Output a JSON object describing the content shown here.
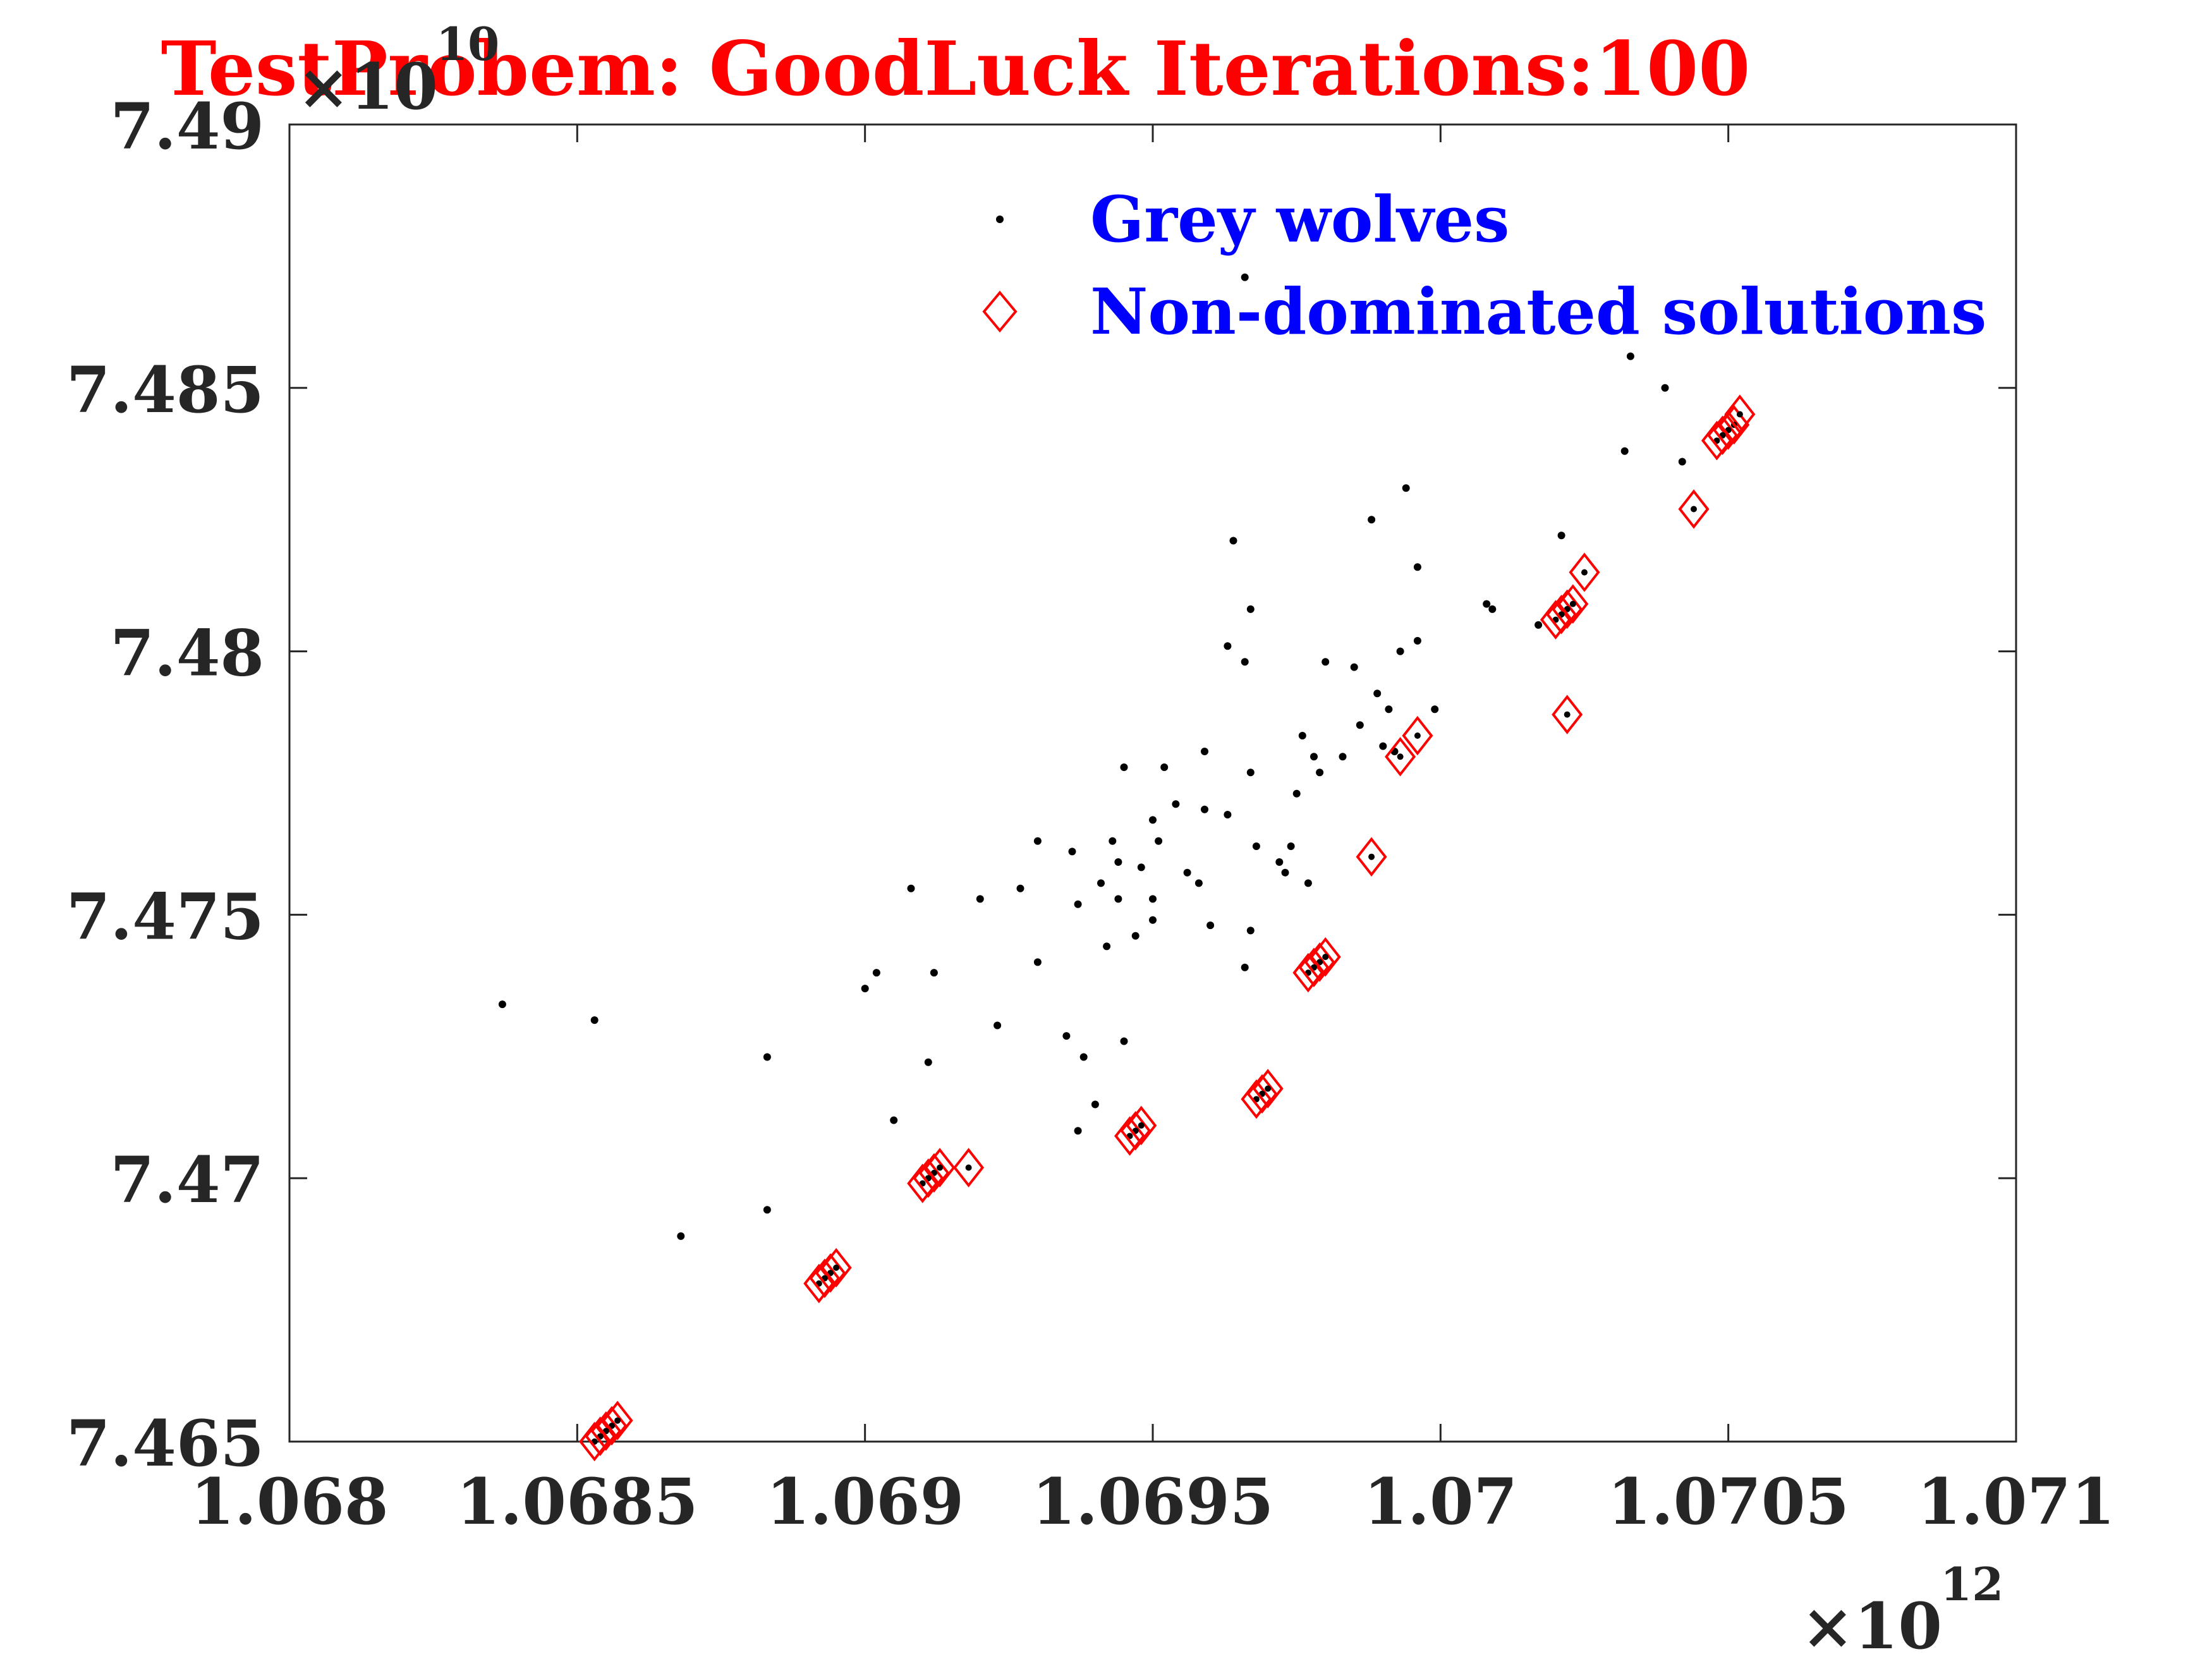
{
  "chart_data": {
    "type": "scatter",
    "title": "TestProbem: GoodLuck   Iterations:100",
    "xlabel": "",
    "ylabel": "",
    "x_multiplier": "×10",
    "x_multiplier_exp": "12",
    "y_multiplier": "×10",
    "y_multiplier_exp": "10",
    "xlim": [
      1.068,
      1.071
    ],
    "ylim": [
      7.465,
      7.49
    ],
    "x_ticks": [
      "1.068",
      "1.0685",
      "1.069",
      "1.0695",
      "1.07",
      "1.0705",
      "1.071"
    ],
    "y_ticks": [
      "7.465",
      "7.47",
      "7.475",
      "7.48",
      "7.485",
      "7.49"
    ],
    "legend_position": "top-right",
    "grid": false,
    "colors": {
      "wolves": "#000000",
      "nondominated": "#ff0000",
      "title": "#ff0000",
      "legend_text": "#0000ff",
      "axis": "#262626"
    },
    "series": [
      {
        "name": "Grey wolves",
        "marker": "dot",
        "points": [
          [
            1.06837,
            7.4733
          ],
          [
            1.06853,
            7.473
          ],
          [
            1.06868,
            7.4689
          ],
          [
            1.06883,
            7.4723
          ],
          [
            1.06883,
            7.4694
          ],
          [
            1.069,
            7.4736
          ],
          [
            1.06902,
            7.4739
          ],
          [
            1.06905,
            7.4711
          ],
          [
            1.06908,
            7.4755
          ],
          [
            1.06911,
            7.4722
          ],
          [
            1.06912,
            7.4739
          ],
          [
            1.0692,
            7.4753
          ],
          [
            1.06923,
            7.4729
          ],
          [
            1.06927,
            7.4755
          ],
          [
            1.0693,
            7.4764
          ],
          [
            1.0693,
            7.4741
          ],
          [
            1.06935,
            7.4727
          ],
          [
            1.06936,
            7.4762
          ],
          [
            1.06937,
            7.4752
          ],
          [
            1.06937,
            7.4709
          ],
          [
            1.06938,
            7.4723
          ],
          [
            1.0694,
            7.4714
          ],
          [
            1.06941,
            7.4756
          ],
          [
            1.06942,
            7.4744
          ],
          [
            1.06943,
            7.4764
          ],
          [
            1.06944,
            7.476
          ],
          [
            1.06944,
            7.4753
          ],
          [
            1.06945,
            7.4726
          ],
          [
            1.06945,
            7.4778
          ],
          [
            1.06947,
            7.4746
          ],
          [
            1.06948,
            7.4759
          ],
          [
            1.0695,
            7.4768
          ],
          [
            1.0695,
            7.4753
          ],
          [
            1.0695,
            7.4749
          ],
          [
            1.06951,
            7.4764
          ],
          [
            1.06952,
            7.4778
          ],
          [
            1.06954,
            7.4771
          ],
          [
            1.06956,
            7.4758
          ],
          [
            1.06958,
            7.4756
          ],
          [
            1.06959,
            7.4781
          ],
          [
            1.06959,
            7.477
          ],
          [
            1.0696,
            7.4748
          ],
          [
            1.06963,
            7.4801
          ],
          [
            1.06963,
            7.4769
          ],
          [
            1.06964,
            7.4821
          ],
          [
            1.06966,
            7.4871
          ],
          [
            1.06966,
            7.4798
          ],
          [
            1.06966,
            7.474
          ],
          [
            1.06967,
            7.4808
          ],
          [
            1.06967,
            7.4777
          ],
          [
            1.06967,
            7.4747
          ],
          [
            1.06968,
            7.4763
          ],
          [
            1.06972,
            7.476
          ],
          [
            1.06973,
            7.4758
          ],
          [
            1.06974,
            7.4763
          ],
          [
            1.06975,
            7.4773
          ],
          [
            1.06976,
            7.4784
          ],
          [
            1.06977,
            7.4756
          ],
          [
            1.06978,
            7.478
          ],
          [
            1.06979,
            7.4777
          ],
          [
            1.0698,
            7.4798
          ],
          [
            1.06983,
            7.478
          ],
          [
            1.06985,
            7.4797
          ],
          [
            1.06986,
            7.4786
          ],
          [
            1.06988,
            7.4825
          ],
          [
            1.06989,
            7.4792
          ],
          [
            1.0699,
            7.4782
          ],
          [
            1.06991,
            7.4789
          ],
          [
            1.06992,
            7.4781
          ],
          [
            1.06993,
            7.48
          ],
          [
            1.06994,
            7.4831
          ],
          [
            1.06996,
            7.4816
          ],
          [
            1.06996,
            7.4802
          ],
          [
            1.06999,
            7.4789
          ],
          [
            1.07008,
            7.4809
          ],
          [
            1.07009,
            7.4808
          ],
          [
            1.07017,
            7.4805
          ],
          [
            1.07021,
            7.4822
          ],
          [
            1.07032,
            7.4838
          ],
          [
            1.07033,
            7.4856
          ],
          [
            1.07039,
            7.485
          ],
          [
            1.07042,
            7.4836
          ]
        ]
      },
      {
        "name": "Non-dominated solutions",
        "marker": "diamond",
        "points": [
          [
            1.06853,
            7.465
          ],
          [
            1.06854,
            7.4651
          ],
          [
            1.06855,
            7.4652
          ],
          [
            1.06856,
            7.4653
          ],
          [
            1.06857,
            7.4654
          ],
          [
            1.06892,
            7.468
          ],
          [
            1.06893,
            7.4681
          ],
          [
            1.06894,
            7.4682
          ],
          [
            1.06895,
            7.4683
          ],
          [
            1.0691,
            7.4699
          ],
          [
            1.06911,
            7.47
          ],
          [
            1.06912,
            7.4701
          ],
          [
            1.06913,
            7.4702
          ],
          [
            1.06918,
            7.4702
          ],
          [
            1.06946,
            7.4708
          ],
          [
            1.06947,
            7.4709
          ],
          [
            1.06948,
            7.471
          ],
          [
            1.06968,
            7.4715
          ],
          [
            1.06969,
            7.4716
          ],
          [
            1.0697,
            7.4717
          ],
          [
            1.06977,
            7.4739
          ],
          [
            1.06978,
            7.474
          ],
          [
            1.06979,
            7.4741
          ],
          [
            1.0698,
            7.4742
          ],
          [
            1.06988,
            7.4761
          ],
          [
            1.06993,
            7.478
          ],
          [
            1.06996,
            7.4784
          ],
          [
            1.0702,
            7.4806
          ],
          [
            1.07021,
            7.4807
          ],
          [
            1.07022,
            7.4808
          ],
          [
            1.07023,
            7.4809
          ],
          [
            1.07025,
            7.4815
          ],
          [
            1.07022,
            7.4788
          ],
          [
            1.07044,
            7.4827
          ],
          [
            1.07048,
            7.484
          ],
          [
            1.07049,
            7.4841
          ],
          [
            1.0705,
            7.4842
          ],
          [
            1.07051,
            7.4843
          ],
          [
            1.07052,
            7.4845
          ]
        ]
      }
    ]
  }
}
